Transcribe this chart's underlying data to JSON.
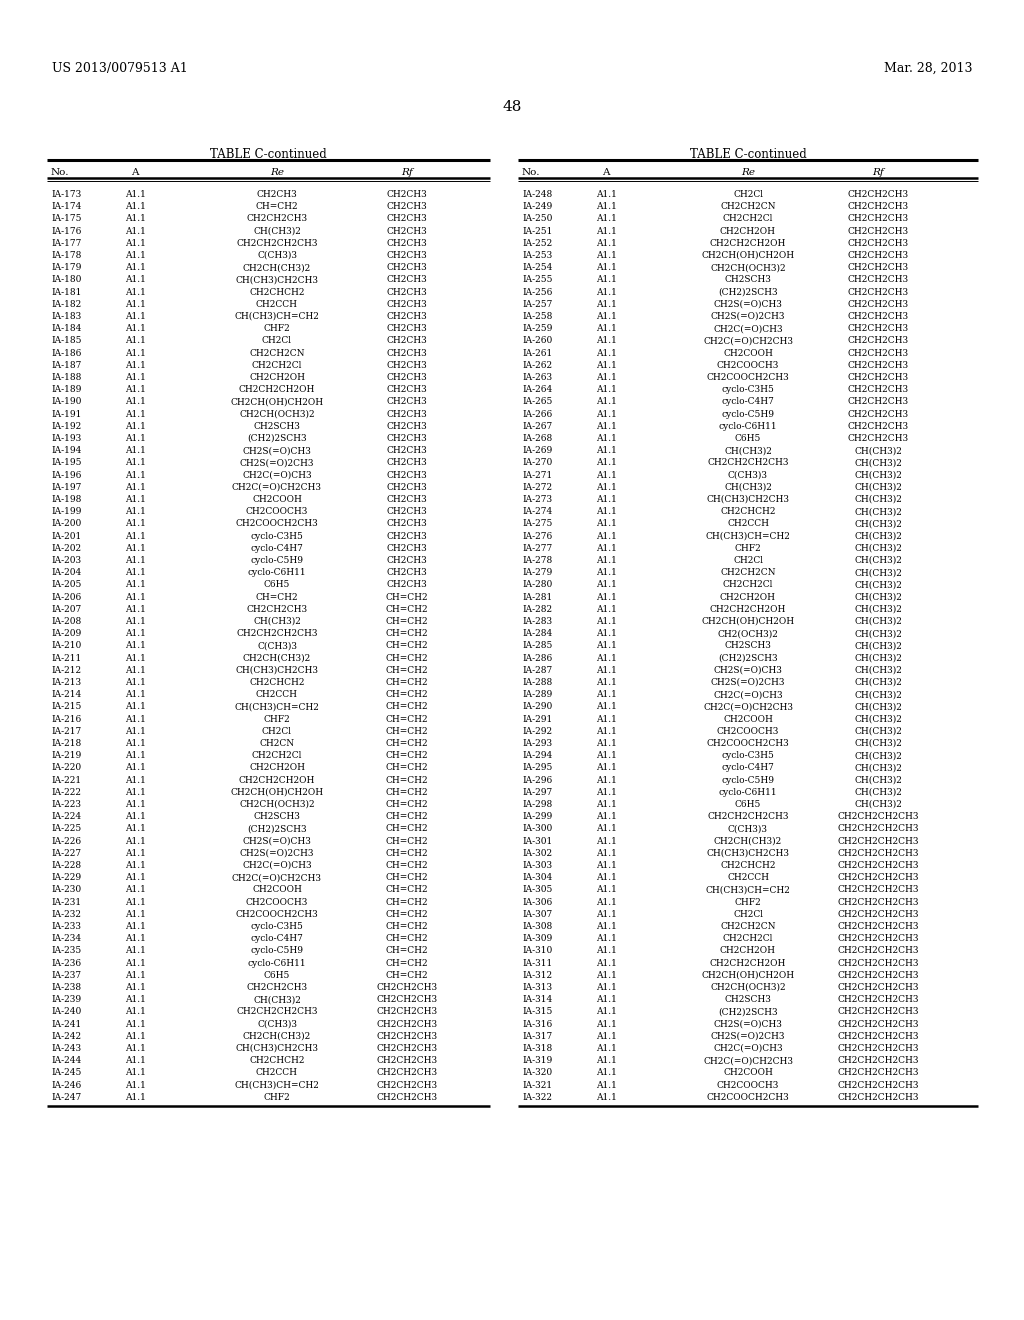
{
  "header_left": "US 2013/0079513 A1",
  "header_right": "Mar. 28, 2013",
  "page_number": "48",
  "table_title": "TABLE C-continued",
  "col_headers": [
    "No.",
    "A",
    "Re",
    "Rf"
  ],
  "left_table": [
    [
      "IA-173",
      "A1.1",
      "CH2CH3",
      "CH2CH3"
    ],
    [
      "IA-174",
      "A1.1",
      "CH=CH2",
      "CH2CH3"
    ],
    [
      "IA-175",
      "A1.1",
      "CH2CH2CH3",
      "CH2CH3"
    ],
    [
      "IA-176",
      "A1.1",
      "CH(CH3)2",
      "CH2CH3"
    ],
    [
      "IA-177",
      "A1.1",
      "CH2CH2CH2CH3",
      "CH2CH3"
    ],
    [
      "IA-178",
      "A1.1",
      "C(CH3)3",
      "CH2CH3"
    ],
    [
      "IA-179",
      "A1.1",
      "CH2CH(CH3)2",
      "CH2CH3"
    ],
    [
      "IA-180",
      "A1.1",
      "CH(CH3)CH2CH3",
      "CH2CH3"
    ],
    [
      "IA-181",
      "A1.1",
      "CH2CHCH2",
      "CH2CH3"
    ],
    [
      "IA-182",
      "A1.1",
      "CH2CCH",
      "CH2CH3"
    ],
    [
      "IA-183",
      "A1.1",
      "CH(CH3)CH=CH2",
      "CH2CH3"
    ],
    [
      "IA-184",
      "A1.1",
      "CHF2",
      "CH2CH3"
    ],
    [
      "IA-185",
      "A1.1",
      "CH2Cl",
      "CH2CH3"
    ],
    [
      "IA-186",
      "A1.1",
      "CH2CH2CN",
      "CH2CH3"
    ],
    [
      "IA-187",
      "A1.1",
      "CH2CH2Cl",
      "CH2CH3"
    ],
    [
      "IA-188",
      "A1.1",
      "CH2CH2OH",
      "CH2CH3"
    ],
    [
      "IA-189",
      "A1.1",
      "CH2CH2CH2OH",
      "CH2CH3"
    ],
    [
      "IA-190",
      "A1.1",
      "CH2CH(OH)CH2OH",
      "CH2CH3"
    ],
    [
      "IA-191",
      "A1.1",
      "CH2CH(OCH3)2",
      "CH2CH3"
    ],
    [
      "IA-192",
      "A1.1",
      "CH2SCH3",
      "CH2CH3"
    ],
    [
      "IA-193",
      "A1.1",
      "(CH2)2SCH3",
      "CH2CH3"
    ],
    [
      "IA-194",
      "A1.1",
      "CH2S(=O)CH3",
      "CH2CH3"
    ],
    [
      "IA-195",
      "A1.1",
      "CH2S(=O)2CH3",
      "CH2CH3"
    ],
    [
      "IA-196",
      "A1.1",
      "CH2C(=O)CH3",
      "CH2CH3"
    ],
    [
      "IA-197",
      "A1.1",
      "CH2C(=O)CH2CH3",
      "CH2CH3"
    ],
    [
      "IA-198",
      "A1.1",
      "CH2COOH",
      "CH2CH3"
    ],
    [
      "IA-199",
      "A1.1",
      "CH2COOCH3",
      "CH2CH3"
    ],
    [
      "IA-200",
      "A1.1",
      "CH2COOCH2CH3",
      "CH2CH3"
    ],
    [
      "IA-201",
      "A1.1",
      "cyclo-C3H5",
      "CH2CH3"
    ],
    [
      "IA-202",
      "A1.1",
      "cyclo-C4H7",
      "CH2CH3"
    ],
    [
      "IA-203",
      "A1.1",
      "cyclo-C5H9",
      "CH2CH3"
    ],
    [
      "IA-204",
      "A1.1",
      "cyclo-C6H11",
      "CH2CH3"
    ],
    [
      "IA-205",
      "A1.1",
      "C6H5",
      "CH2CH3"
    ],
    [
      "IA-206",
      "A1.1",
      "CH=CH2",
      "CH=CH2"
    ],
    [
      "IA-207",
      "A1.1",
      "CH2CH2CH3",
      "CH=CH2"
    ],
    [
      "IA-208",
      "A1.1",
      "CH(CH3)2",
      "CH=CH2"
    ],
    [
      "IA-209",
      "A1.1",
      "CH2CH2CH2CH3",
      "CH=CH2"
    ],
    [
      "IA-210",
      "A1.1",
      "C(CH3)3",
      "CH=CH2"
    ],
    [
      "IA-211",
      "A1.1",
      "CH2CH(CH3)2",
      "CH=CH2"
    ],
    [
      "IA-212",
      "A1.1",
      "CH(CH3)CH2CH3",
      "CH=CH2"
    ],
    [
      "IA-213",
      "A1.1",
      "CH2CHCH2",
      "CH=CH2"
    ],
    [
      "IA-214",
      "A1.1",
      "CH2CCH",
      "CH=CH2"
    ],
    [
      "IA-215",
      "A1.1",
      "CH(CH3)CH=CH2",
      "CH=CH2"
    ],
    [
      "IA-216",
      "A1.1",
      "CHF2",
      "CH=CH2"
    ],
    [
      "IA-217",
      "A1.1",
      "CH2Cl",
      "CH=CH2"
    ],
    [
      "IA-218",
      "A1.1",
      "CH2CN",
      "CH=CH2"
    ],
    [
      "IA-219",
      "A1.1",
      "CH2CH2Cl",
      "CH=CH2"
    ],
    [
      "IA-220",
      "A1.1",
      "CH2CH2OH",
      "CH=CH2"
    ],
    [
      "IA-221",
      "A1.1",
      "CH2CH2CH2OH",
      "CH=CH2"
    ],
    [
      "IA-222",
      "A1.1",
      "CH2CH(OH)CH2OH",
      "CH=CH2"
    ],
    [
      "IA-223",
      "A1.1",
      "CH2CH(OCH3)2",
      "CH=CH2"
    ],
    [
      "IA-224",
      "A1.1",
      "CH2SCH3",
      "CH=CH2"
    ],
    [
      "IA-225",
      "A1.1",
      "(CH2)2SCH3",
      "CH=CH2"
    ],
    [
      "IA-226",
      "A1.1",
      "CH2S(=O)CH3",
      "CH=CH2"
    ],
    [
      "IA-227",
      "A1.1",
      "CH2S(=O)2CH3",
      "CH=CH2"
    ],
    [
      "IA-228",
      "A1.1",
      "CH2C(=O)CH3",
      "CH=CH2"
    ],
    [
      "IA-229",
      "A1.1",
      "CH2C(=O)CH2CH3",
      "CH=CH2"
    ],
    [
      "IA-230",
      "A1.1",
      "CH2COOH",
      "CH=CH2"
    ],
    [
      "IA-231",
      "A1.1",
      "CH2COOCH3",
      "CH=CH2"
    ],
    [
      "IA-232",
      "A1.1",
      "CH2COOCH2CH3",
      "CH=CH2"
    ],
    [
      "IA-233",
      "A1.1",
      "cyclo-C3H5",
      "CH=CH2"
    ],
    [
      "IA-234",
      "A1.1",
      "cyclo-C4H7",
      "CH=CH2"
    ],
    [
      "IA-235",
      "A1.1",
      "cyclo-C5H9",
      "CH=CH2"
    ],
    [
      "IA-236",
      "A1.1",
      "cyclo-C6H11",
      "CH=CH2"
    ],
    [
      "IA-237",
      "A1.1",
      "C6H5",
      "CH=CH2"
    ],
    [
      "IA-238",
      "A1.1",
      "CH2CH2CH3",
      "CH2CH2CH3"
    ],
    [
      "IA-239",
      "A1.1",
      "CH(CH3)2",
      "CH2CH2CH3"
    ],
    [
      "IA-240",
      "A1.1",
      "CH2CH2CH2CH3",
      "CH2CH2CH3"
    ],
    [
      "IA-241",
      "A1.1",
      "C(CH3)3",
      "CH2CH2CH3"
    ],
    [
      "IA-242",
      "A1.1",
      "CH2CH(CH3)2",
      "CH2CH2CH3"
    ],
    [
      "IA-243",
      "A1.1",
      "CH(CH3)CH2CH3",
      "CH2CH2CH3"
    ],
    [
      "IA-244",
      "A1.1",
      "CH2CHCH2",
      "CH2CH2CH3"
    ],
    [
      "IA-245",
      "A1.1",
      "CH2CCH",
      "CH2CH2CH3"
    ],
    [
      "IA-246",
      "A1.1",
      "CH(CH3)CH=CH2",
      "CH2CH2CH3"
    ],
    [
      "IA-247",
      "A1.1",
      "CHF2",
      "CH2CH2CH3"
    ]
  ],
  "right_table": [
    [
      "IA-248",
      "A1.1",
      "CH2Cl",
      "CH2CH2CH3"
    ],
    [
      "IA-249",
      "A1.1",
      "CH2CH2CN",
      "CH2CH2CH3"
    ],
    [
      "IA-250",
      "A1.1",
      "CH2CH2Cl",
      "CH2CH2CH3"
    ],
    [
      "IA-251",
      "A1.1",
      "CH2CH2OH",
      "CH2CH2CH3"
    ],
    [
      "IA-252",
      "A1.1",
      "CH2CH2CH2OH",
      "CH2CH2CH3"
    ],
    [
      "IA-253",
      "A1.1",
      "CH2CH(OH)CH2OH",
      "CH2CH2CH3"
    ],
    [
      "IA-254",
      "A1.1",
      "CH2CH(OCH3)2",
      "CH2CH2CH3"
    ],
    [
      "IA-255",
      "A1.1",
      "CH2SCH3",
      "CH2CH2CH3"
    ],
    [
      "IA-256",
      "A1.1",
      "(CH2)2SCH3",
      "CH2CH2CH3"
    ],
    [
      "IA-257",
      "A1.1",
      "CH2S(=O)CH3",
      "CH2CH2CH3"
    ],
    [
      "IA-258",
      "A1.1",
      "CH2S(=O)2CH3",
      "CH2CH2CH3"
    ],
    [
      "IA-259",
      "A1.1",
      "CH2C(=O)CH3",
      "CH2CH2CH3"
    ],
    [
      "IA-260",
      "A1.1",
      "CH2C(=O)CH2CH3",
      "CH2CH2CH3"
    ],
    [
      "IA-261",
      "A1.1",
      "CH2COOH",
      "CH2CH2CH3"
    ],
    [
      "IA-262",
      "A1.1",
      "CH2COOCH3",
      "CH2CH2CH3"
    ],
    [
      "IA-263",
      "A1.1",
      "CH2COOCH2CH3",
      "CH2CH2CH3"
    ],
    [
      "IA-264",
      "A1.1",
      "cyclo-C3H5",
      "CH2CH2CH3"
    ],
    [
      "IA-265",
      "A1.1",
      "cyclo-C4H7",
      "CH2CH2CH3"
    ],
    [
      "IA-266",
      "A1.1",
      "cyclo-C5H9",
      "CH2CH2CH3"
    ],
    [
      "IA-267",
      "A1.1",
      "cyclo-C6H11",
      "CH2CH2CH3"
    ],
    [
      "IA-268",
      "A1.1",
      "C6H5",
      "CH2CH2CH3"
    ],
    [
      "IA-269",
      "A1.1",
      "CH(CH3)2",
      "CH(CH3)2"
    ],
    [
      "IA-270",
      "A1.1",
      "CH2CH2CH2CH3",
      "CH(CH3)2"
    ],
    [
      "IA-271",
      "A1.1",
      "C(CH3)3",
      "CH(CH3)2"
    ],
    [
      "IA-272",
      "A1.1",
      "CH(CH3)2",
      "CH(CH3)2"
    ],
    [
      "IA-273",
      "A1.1",
      "CH(CH3)CH2CH3",
      "CH(CH3)2"
    ],
    [
      "IA-274",
      "A1.1",
      "CH2CHCH2",
      "CH(CH3)2"
    ],
    [
      "IA-275",
      "A1.1",
      "CH2CCH",
      "CH(CH3)2"
    ],
    [
      "IA-276",
      "A1.1",
      "CH(CH3)CH=CH2",
      "CH(CH3)2"
    ],
    [
      "IA-277",
      "A1.1",
      "CHF2",
      "CH(CH3)2"
    ],
    [
      "IA-278",
      "A1.1",
      "CH2Cl",
      "CH(CH3)2"
    ],
    [
      "IA-279",
      "A1.1",
      "CH2CH2CN",
      "CH(CH3)2"
    ],
    [
      "IA-280",
      "A1.1",
      "CH2CH2Cl",
      "CH(CH3)2"
    ],
    [
      "IA-281",
      "A1.1",
      "CH2CH2OH",
      "CH(CH3)2"
    ],
    [
      "IA-282",
      "A1.1",
      "CH2CH2CH2OH",
      "CH(CH3)2"
    ],
    [
      "IA-283",
      "A1.1",
      "CH2CH(OH)CH2OH",
      "CH(CH3)2"
    ],
    [
      "IA-284",
      "A1.1",
      "CH2(OCH3)2",
      "CH(CH3)2"
    ],
    [
      "IA-285",
      "A1.1",
      "CH2SCH3",
      "CH(CH3)2"
    ],
    [
      "IA-286",
      "A1.1",
      "(CH2)2SCH3",
      "CH(CH3)2"
    ],
    [
      "IA-287",
      "A1.1",
      "CH2S(=O)CH3",
      "CH(CH3)2"
    ],
    [
      "IA-288",
      "A1.1",
      "CH2S(=O)2CH3",
      "CH(CH3)2"
    ],
    [
      "IA-289",
      "A1.1",
      "CH2C(=O)CH3",
      "CH(CH3)2"
    ],
    [
      "IA-290",
      "A1.1",
      "CH2C(=O)CH2CH3",
      "CH(CH3)2"
    ],
    [
      "IA-291",
      "A1.1",
      "CH2COOH",
      "CH(CH3)2"
    ],
    [
      "IA-292",
      "A1.1",
      "CH2COOCH3",
      "CH(CH3)2"
    ],
    [
      "IA-293",
      "A1.1",
      "CH2COOCH2CH3",
      "CH(CH3)2"
    ],
    [
      "IA-294",
      "A1.1",
      "cyclo-C3H5",
      "CH(CH3)2"
    ],
    [
      "IA-295",
      "A1.1",
      "cyclo-C4H7",
      "CH(CH3)2"
    ],
    [
      "IA-296",
      "A1.1",
      "cyclo-C5H9",
      "CH(CH3)2"
    ],
    [
      "IA-297",
      "A1.1",
      "cyclo-C6H11",
      "CH(CH3)2"
    ],
    [
      "IA-298",
      "A1.1",
      "C6H5",
      "CH(CH3)2"
    ],
    [
      "IA-299",
      "A1.1",
      "CH2CH2CH2CH3",
      "CH2CH2CH2CH3"
    ],
    [
      "IA-300",
      "A1.1",
      "C(CH3)3",
      "CH2CH2CH2CH3"
    ],
    [
      "IA-301",
      "A1.1",
      "CH2CH(CH3)2",
      "CH2CH2CH2CH3"
    ],
    [
      "IA-302",
      "A1.1",
      "CH(CH3)CH2CH3",
      "CH2CH2CH2CH3"
    ],
    [
      "IA-303",
      "A1.1",
      "CH2CHCH2",
      "CH2CH2CH2CH3"
    ],
    [
      "IA-304",
      "A1.1",
      "CH2CCH",
      "CH2CH2CH2CH3"
    ],
    [
      "IA-305",
      "A1.1",
      "CH(CH3)CH=CH2",
      "CH2CH2CH2CH3"
    ],
    [
      "IA-306",
      "A1.1",
      "CHF2",
      "CH2CH2CH2CH3"
    ],
    [
      "IA-307",
      "A1.1",
      "CH2Cl",
      "CH2CH2CH2CH3"
    ],
    [
      "IA-308",
      "A1.1",
      "CH2CH2CN",
      "CH2CH2CH2CH3"
    ],
    [
      "IA-309",
      "A1.1",
      "CH2CH2Cl",
      "CH2CH2CH2CH3"
    ],
    [
      "IA-310",
      "A1.1",
      "CH2CH2OH",
      "CH2CH2CH2CH3"
    ],
    [
      "IA-311",
      "A1.1",
      "CH2CH2CH2OH",
      "CH2CH2CH2CH3"
    ],
    [
      "IA-312",
      "A1.1",
      "CH2CH(OH)CH2OH",
      "CH2CH2CH2CH3"
    ],
    [
      "IA-313",
      "A1.1",
      "CH2CH(OCH3)2",
      "CH2CH2CH2CH3"
    ],
    [
      "IA-314",
      "A1.1",
      "CH2SCH3",
      "CH2CH2CH2CH3"
    ],
    [
      "IA-315",
      "A1.1",
      "(CH2)2SCH3",
      "CH2CH2CH2CH3"
    ],
    [
      "IA-316",
      "A1.1",
      "CH2S(=O)CH3",
      "CH2CH2CH2CH3"
    ],
    [
      "IA-317",
      "A1.1",
      "CH2S(=O)2CH3",
      "CH2CH2CH2CH3"
    ],
    [
      "IA-318",
      "A1.1",
      "CH2C(=O)CH3",
      "CH2CH2CH2CH3"
    ],
    [
      "IA-319",
      "A1.1",
      "CH2C(=O)CH2CH3",
      "CH2CH2CH2CH3"
    ],
    [
      "IA-320",
      "A1.1",
      "CH2COOH",
      "CH2CH2CH2CH3"
    ],
    [
      "IA-321",
      "A1.1",
      "CH2COOCH3",
      "CH2CH2CH2CH3"
    ],
    [
      "IA-322",
      "A1.1",
      "CH2COOCH2CH3",
      "CH2CH2CH2CH3"
    ]
  ],
  "bg_color": "#ffffff",
  "text_color": "#000000",
  "line_color": "#000000",
  "font_size": 6.5,
  "header_font_size": 7.5,
  "title_font_size": 8.5
}
